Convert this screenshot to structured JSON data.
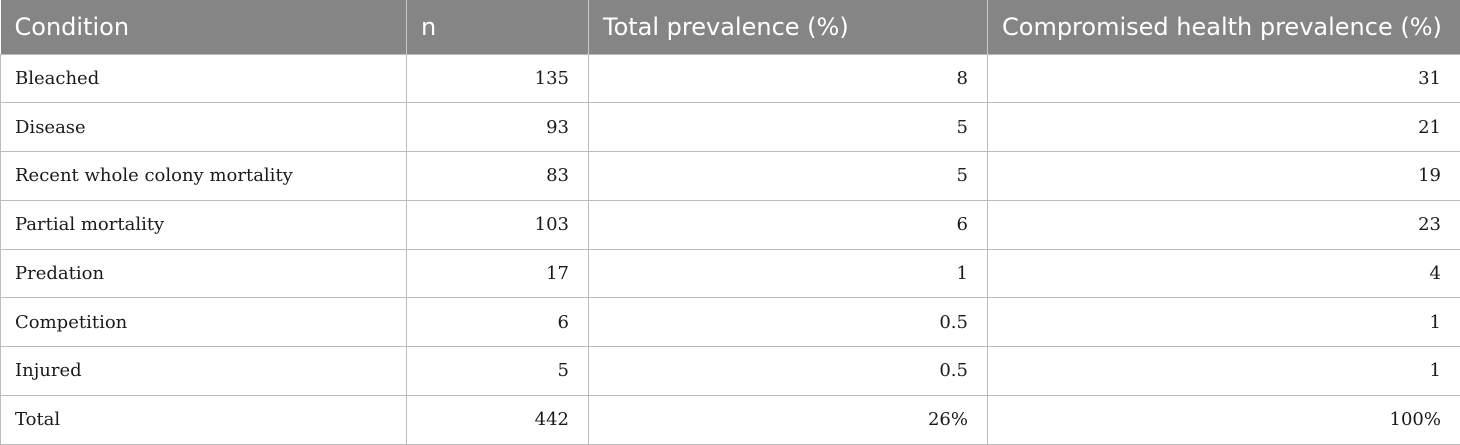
{
  "table": {
    "columns": [
      "Condition",
      "n",
      "Total prevalence (%)",
      "Compromised health prevalence (%)"
    ],
    "rows": [
      {
        "condition": "Bleached",
        "n": "135",
        "total_prevalence": "8",
        "compromised_prevalence": "31"
      },
      {
        "condition": "Disease",
        "n": "93",
        "total_prevalence": "5",
        "compromised_prevalence": "21"
      },
      {
        "condition": "Recent whole colony mortality",
        "n": "83",
        "total_prevalence": "5",
        "compromised_prevalence": "19"
      },
      {
        "condition": "Partial mortality",
        "n": "103",
        "total_prevalence": "6",
        "compromised_prevalence": "23"
      },
      {
        "condition": "Predation",
        "n": "17",
        "total_prevalence": "1",
        "compromised_prevalence": "4"
      },
      {
        "condition": "Competition",
        "n": "6",
        "total_prevalence": "0.5",
        "compromised_prevalence": "1"
      },
      {
        "condition": "Injured",
        "n": "5",
        "total_prevalence": "0.5",
        "compromised_prevalence": "1"
      },
      {
        "condition": "Total",
        "n": "442",
        "total_prevalence": "26%",
        "compromised_prevalence": "100%"
      }
    ]
  },
  "colors": {
    "header_background": "#858585",
    "header_text": "#ffffff",
    "cell_border": "#bdbdbd"
  }
}
